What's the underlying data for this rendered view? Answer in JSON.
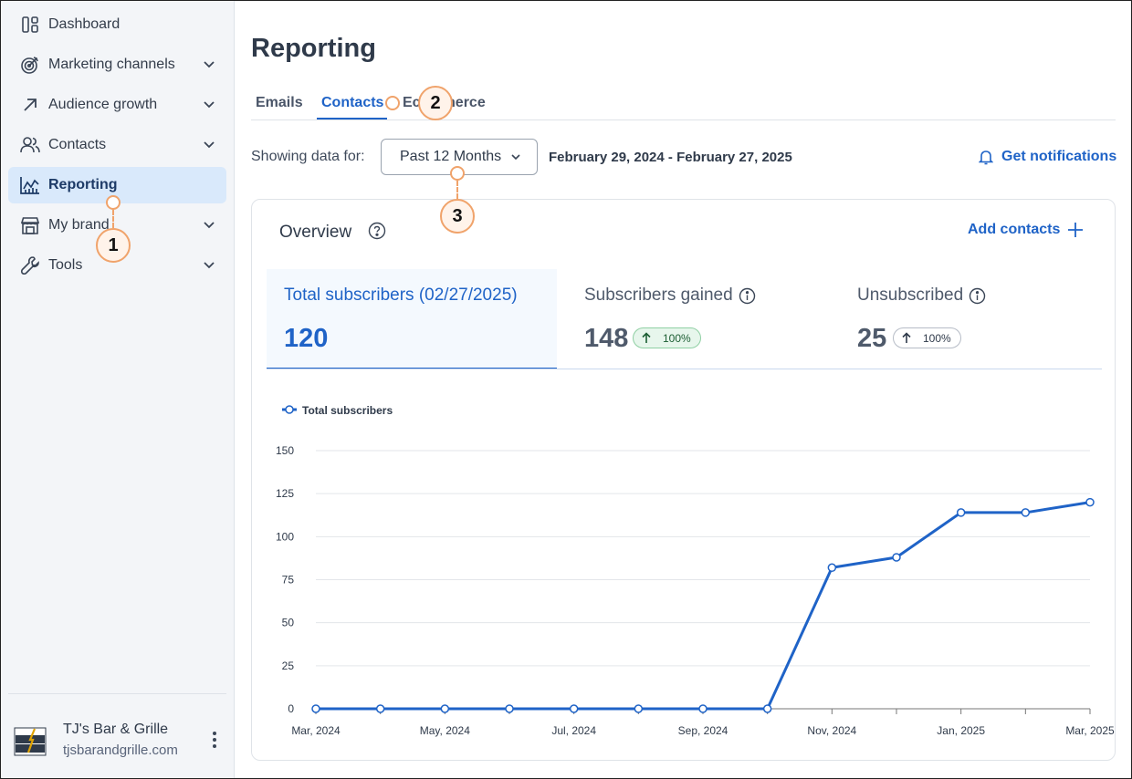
{
  "sidebar": {
    "items": [
      {
        "label": "Dashboard",
        "icon": "dashboard-icon",
        "has_chevron": false
      },
      {
        "label": "Marketing channels",
        "icon": "target-icon",
        "has_chevron": true
      },
      {
        "label": "Audience growth",
        "icon": "arrow-up-right-icon",
        "has_chevron": true
      },
      {
        "label": "Contacts",
        "icon": "people-icon",
        "has_chevron": true
      },
      {
        "label": "Reporting",
        "icon": "chart-icon",
        "has_chevron": false,
        "active": true
      },
      {
        "label": "My brand",
        "icon": "storefront-icon",
        "has_chevron": true
      },
      {
        "label": "Tools",
        "icon": "wrench-icon",
        "has_chevron": true
      }
    ],
    "account": {
      "name": "TJ's Bar & Grille",
      "url": "tjsbarandgrille.com",
      "logo_text": "BAR GRILLE"
    }
  },
  "header": {
    "title": "Reporting"
  },
  "tabs": [
    {
      "label": "Emails",
      "active": false
    },
    {
      "label": "Contacts",
      "active": true
    },
    {
      "label": "Ecommerce",
      "active": false
    }
  ],
  "filter": {
    "label": "Showing data for:",
    "selected": "Past 12 Months",
    "date_range": "February 29, 2024 - February 27, 2025",
    "notifications": "Get notifications"
  },
  "overview": {
    "title": "Overview",
    "add_contacts": "Add contacts",
    "metrics": [
      {
        "label": "Total subscribers (02/27/2025)",
        "value": "120",
        "active": true
      },
      {
        "label": "Subscribers gained",
        "value": "148",
        "badge": "100%",
        "badge_style": "green"
      },
      {
        "label": "Unsubscribed",
        "value": "25",
        "badge": "100%",
        "badge_style": "gray"
      }
    ]
  },
  "annotations": [
    "1",
    "2",
    "3"
  ],
  "colors": {
    "accent": "#1f63c7",
    "callout": "#f0a36b"
  },
  "chart_data": {
    "type": "line",
    "title": "",
    "legend": "Total subscribers",
    "ylim": [
      0,
      150
    ],
    "yticks": [
      0,
      25,
      50,
      75,
      100,
      125,
      150
    ],
    "xtick_labels": [
      "Mar, 2024",
      "May, 2024",
      "Jul, 2024",
      "Sep, 2024",
      "Nov, 2024",
      "Jan, 2025",
      "Mar, 2025"
    ],
    "series": [
      {
        "name": "Total subscribers",
        "x": [
          "Feb 29, 2024",
          "Mar 2024",
          "Apr 2024",
          "May 2024",
          "Jun 2024",
          "Jul 2024",
          "Aug 2024",
          "Sep 2024",
          "Oct 2024",
          "Nov 2024",
          "Dec 2024",
          "Jan 2025",
          "Feb 27, 2025"
        ],
        "values": [
          0,
          0,
          0,
          0,
          0,
          0,
          0,
          0,
          82,
          88,
          114,
          114,
          120
        ]
      }
    ]
  }
}
